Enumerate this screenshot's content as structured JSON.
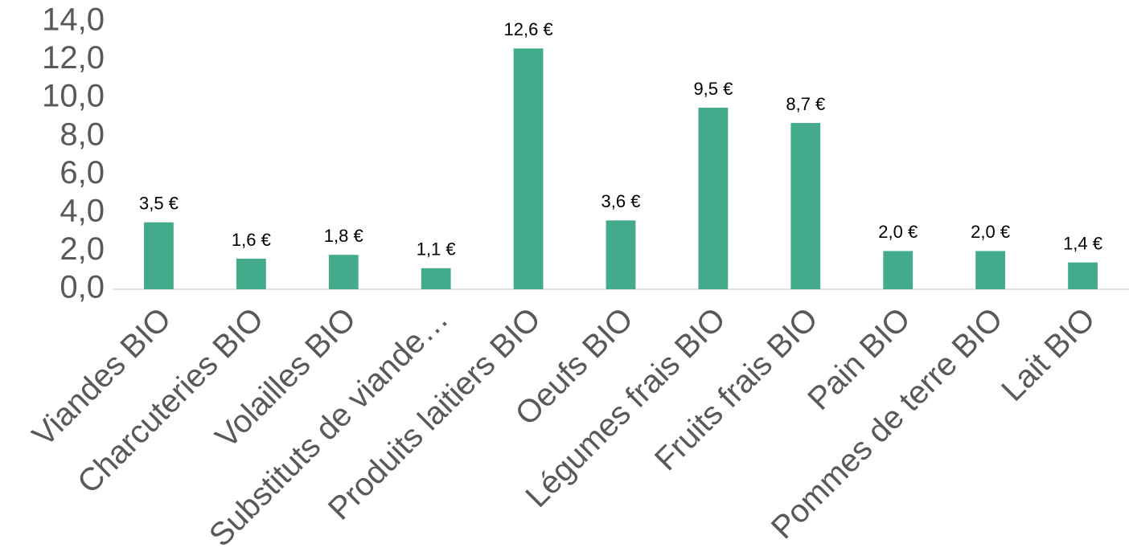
{
  "chart_data": {
    "type": "bar",
    "categories": [
      "Viandes BIO",
      "Charcuteries BIO",
      "Volailles BIO",
      "Substituts de viande…",
      "Produits laitiers BIO",
      "Oeufs BIO",
      "Légumes frais BIO",
      "Fruits frais BIO",
      "Pain BIO",
      "Pommes de terre BIO",
      "Lait BIO"
    ],
    "values": [
      3.5,
      1.6,
      1.8,
      1.1,
      12.6,
      3.6,
      9.5,
      8.7,
      2.0,
      2.0,
      1.4
    ],
    "value_labels": [
      "3,5 €",
      "1,6 €",
      "1,8 €",
      "1,1 €",
      "12,6 €",
      "3,6 €",
      "9,5 €",
      "8,7 €",
      "2,0 €",
      "2,0 €",
      "1,4 €"
    ],
    "color": "#43aa8b",
    "ylim": [
      0,
      14
    ],
    "yticks": [
      {
        "value": 0,
        "label": "0,0"
      },
      {
        "value": 2,
        "label": "2,0"
      },
      {
        "value": 4,
        "label": "4,0"
      },
      {
        "value": 6,
        "label": "6,0"
      },
      {
        "value": 8,
        "label": "8,0"
      },
      {
        "value": 10,
        "label": "10,0"
      },
      {
        "value": 12,
        "label": "12,0"
      },
      {
        "value": 14,
        "label": "14,0"
      }
    ],
    "grid": false
  }
}
